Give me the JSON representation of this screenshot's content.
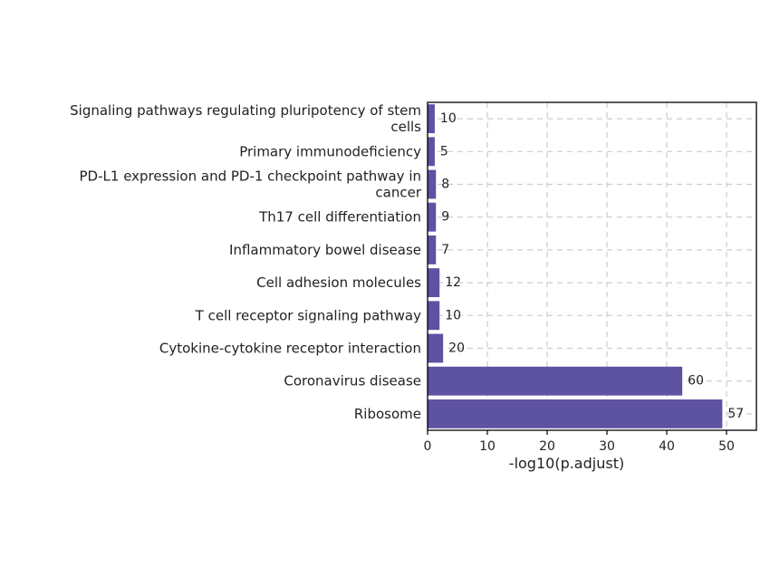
{
  "chart_data": {
    "type": "bar",
    "orientation": "horizontal",
    "title": "",
    "xlabel": "-log10(p.adjust)",
    "ylabel": "",
    "categories": [
      "Ribosome",
      "Coronavirus disease",
      "Cytokine-cytokine receptor interaction",
      "T cell receptor signaling pathway",
      "Cell adhesion molecules",
      "Inflammatory bowel disease",
      "Th17 cell differentiation",
      "PD-L1 expression and PD-1 checkpoint pathway in cancer",
      "Primary immunodeficiency",
      "Signaling pathways regulating pluripotency of stem cells"
    ],
    "values": [
      49.3,
      42.6,
      2.6,
      2.0,
      2.0,
      1.4,
      1.4,
      1.4,
      1.2,
      1.2
    ],
    "bar_labels": [
      "57",
      "60",
      "20",
      "10",
      "12",
      "7",
      "9",
      "8",
      "5",
      "10"
    ],
    "xlim": [
      0,
      55
    ],
    "xticks": [
      0,
      10,
      20,
      30,
      40,
      50
    ],
    "grid": true,
    "bar_color": "#5e52a3",
    "grid_color": "#cccccc",
    "axis_color": "#000000"
  }
}
